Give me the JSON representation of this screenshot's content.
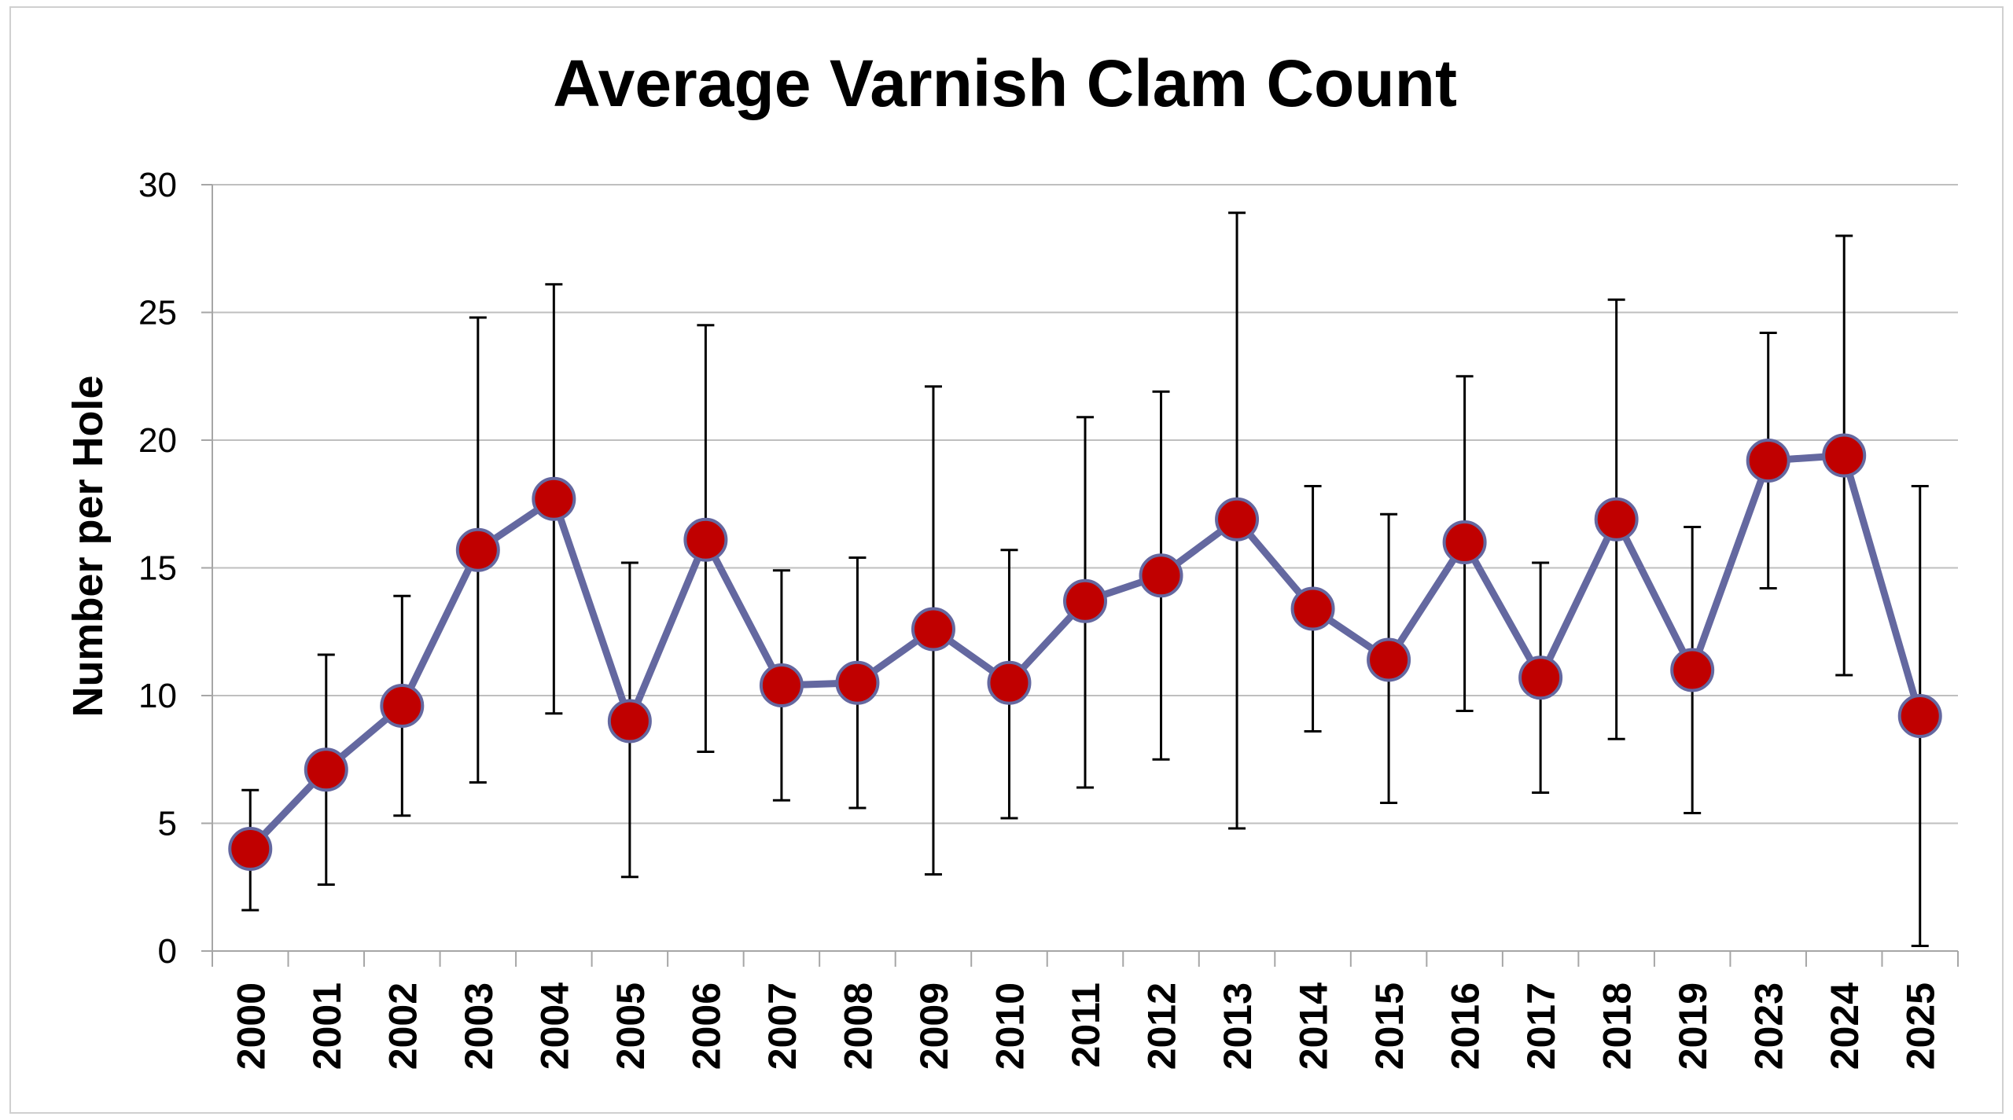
{
  "chart_data": {
    "type": "line",
    "title": "Average Varnish Clam Count",
    "xlabel": "",
    "ylabel": "Number per Hole",
    "ylim": [
      0,
      30
    ],
    "yticks": [
      "0",
      "5",
      "10",
      "15",
      "20",
      "25",
      "30"
    ],
    "grid": true,
    "legend": "none",
    "categories": [
      "2000",
      "2001",
      "2002",
      "2003",
      "2004",
      "2005",
      "2006",
      "2007",
      "2008",
      "2009",
      "2010",
      "2011",
      "2012",
      "2013",
      "2014",
      "2015",
      "2016",
      "2017",
      "2018",
      "2019",
      "2023",
      "2024",
      "2025"
    ],
    "series": [
      {
        "values": [
          4.0,
          7.1,
          9.6,
          15.7,
          17.7,
          9.0,
          16.1,
          10.4,
          10.5,
          12.6,
          10.5,
          13.7,
          14.7,
          16.9,
          13.4,
          11.4,
          16.0,
          10.7,
          16.9,
          11.0,
          19.2,
          19.4,
          9.2
        ],
        "error_low": [
          1.6,
          2.6,
          5.3,
          6.6,
          9.3,
          2.9,
          7.8,
          5.9,
          5.6,
          3.0,
          5.2,
          6.4,
          7.5,
          4.8,
          8.6,
          5.8,
          9.4,
          6.2,
          8.3,
          5.4,
          14.2,
          10.8,
          0.2
        ],
        "error_high": [
          6.3,
          11.6,
          13.9,
          24.8,
          26.1,
          15.2,
          24.5,
          14.9,
          15.4,
          22.1,
          15.7,
          20.9,
          21.9,
          28.9,
          18.2,
          17.1,
          22.5,
          15.2,
          25.5,
          16.6,
          24.2,
          28.0,
          18.2
        ]
      }
    ],
    "colors": {
      "line": "#6468A0",
      "marker_fill": "#C00000",
      "marker_stroke": "#6468A0",
      "error_bar": "#000000",
      "grid": "#bfbfbf",
      "axis": "#a6a6a6"
    }
  }
}
